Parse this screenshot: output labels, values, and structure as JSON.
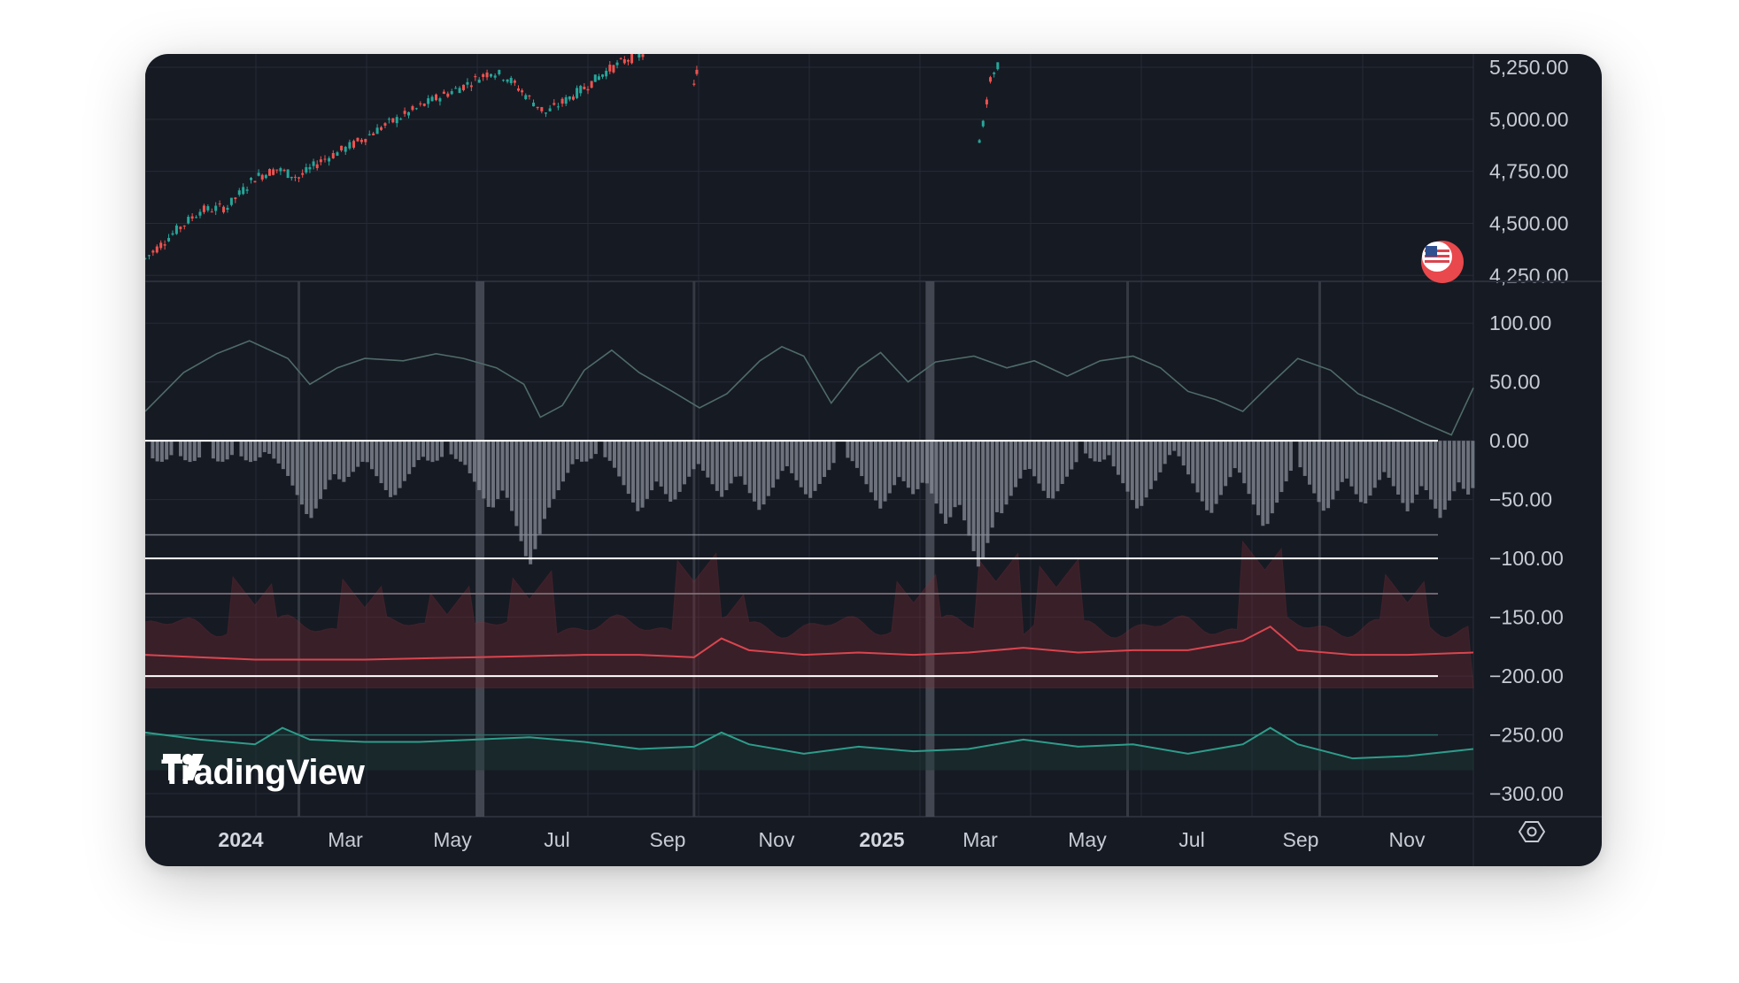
{
  "brand": {
    "name": "TradingView"
  },
  "icons": {
    "logo": "tradingview-logo",
    "settings": "gear-icon",
    "flag": "us-flag-icon"
  },
  "colors": {
    "background": "#161a23",
    "grid": "#262b36",
    "candle_up": "#26a69a",
    "candle_down": "#ef5350",
    "oscillator_line": "#4f6b68",
    "histogram": "#8a8f99",
    "red_line": "#d9454f",
    "red_area": "#7a2a33",
    "green_line": "#2e9c8a",
    "white_level": "#ffffff"
  },
  "chart_data": [
    {
      "type": "candlestick",
      "panel": "price",
      "y_ticks": [
        "5,250.00",
        "5,000.00",
        "4,750.00",
        "4,500.00",
        "4,250.00"
      ],
      "ylim": [
        4230,
        5280
      ],
      "x_ticks": [
        "2024",
        "Mar",
        "May",
        "Jul",
        "Sep",
        "Nov",
        "2025",
        "Mar",
        "May",
        "Jul",
        "Sep",
        "Nov"
      ],
      "xlim": [
        0,
        24.2
      ],
      "price_closes": [
        [
          0.0,
          4330
        ],
        [
          0.5,
          4450
        ],
        [
          1.0,
          4560
        ],
        [
          1.5,
          4580
        ],
        [
          2.0,
          4720
        ],
        [
          2.4,
          4760
        ],
        [
          2.8,
          4720
        ],
        [
          3.2,
          4800
        ],
        [
          3.8,
          4880
        ],
        [
          4.3,
          4960
        ],
        [
          4.8,
          5030
        ],
        [
          5.3,
          5100
        ],
        [
          5.8,
          5160
        ],
        [
          6.3,
          5230
        ],
        [
          6.6,
          5200
        ],
        [
          7.0,
          5100
        ],
        [
          7.3,
          5030
        ],
        [
          7.6,
          5080
        ],
        [
          8.0,
          5150
        ],
        [
          8.4,
          5230
        ],
        [
          8.8,
          5290
        ],
        [
          9.2,
          5320
        ]
      ],
      "price_segment_2": [
        [
          15.2,
          4880
        ],
        [
          15.4,
          5180
        ],
        [
          15.6,
          5300
        ]
      ],
      "price_segment_1b": [
        [
          10.0,
          5180
        ],
        [
          10.1,
          5280
        ]
      ]
    },
    {
      "type": "line",
      "panel": "oscillator",
      "name": "",
      "y_ticks": [
        "100.00",
        "50.00",
        "0.00",
        "−50.00",
        "−100.00",
        "−150.00",
        "−200.00",
        "−250.00",
        "−300.00"
      ],
      "ylim": [
        -312,
        128
      ],
      "xlim": [
        0,
        24.2
      ],
      "upper_line": [
        [
          0,
          25
        ],
        [
          0.7,
          58
        ],
        [
          1.3,
          74
        ],
        [
          1.9,
          85
        ],
        [
          2.6,
          70
        ],
        [
          3.0,
          48
        ],
        [
          3.5,
          62
        ],
        [
          4.0,
          70
        ],
        [
          4.7,
          68
        ],
        [
          5.3,
          74
        ],
        [
          5.8,
          70
        ],
        [
          6.4,
          62
        ],
        [
          6.9,
          48
        ],
        [
          7.2,
          20
        ],
        [
          7.6,
          30
        ],
        [
          8.0,
          60
        ],
        [
          8.5,
          77
        ],
        [
          9.0,
          58
        ],
        [
          9.6,
          42
        ],
        [
          10.1,
          28
        ],
        [
          10.6,
          40
        ],
        [
          11.2,
          68
        ],
        [
          11.6,
          80
        ],
        [
          12.0,
          72
        ],
        [
          12.5,
          32
        ],
        [
          13.0,
          62
        ],
        [
          13.4,
          75
        ],
        [
          13.9,
          50
        ],
        [
          14.4,
          67
        ],
        [
          15.1,
          72
        ],
        [
          15.7,
          62
        ],
        [
          16.2,
          68
        ],
        [
          16.8,
          55
        ],
        [
          17.4,
          68
        ],
        [
          18.0,
          72
        ],
        [
          18.5,
          62
        ],
        [
          19.0,
          42
        ],
        [
          19.5,
          35
        ],
        [
          20.0,
          25
        ],
        [
          20.5,
          48
        ],
        [
          21.0,
          70
        ],
        [
          21.6,
          60
        ],
        [
          22.1,
          40
        ],
        [
          22.7,
          28
        ],
        [
          23.3,
          15
        ],
        [
          23.8,
          5
        ],
        [
          24.2,
          45
        ]
      ],
      "lower_red": [
        [
          0,
          -182
        ],
        [
          1,
          -184
        ],
        [
          2,
          -186
        ],
        [
          3,
          -186
        ],
        [
          4,
          -186
        ],
        [
          5,
          -185
        ],
        [
          6,
          -184
        ],
        [
          7,
          -183
        ],
        [
          8,
          -182
        ],
        [
          9,
          -182
        ],
        [
          10,
          -184
        ],
        [
          10.5,
          -168
        ],
        [
          11.0,
          -178
        ],
        [
          12,
          -182
        ],
        [
          13,
          -180
        ],
        [
          14,
          -182
        ],
        [
          15,
          -180
        ],
        [
          16,
          -176
        ],
        [
          17,
          -180
        ],
        [
          18,
          -178
        ],
        [
          19,
          -178
        ],
        [
          20,
          -170
        ],
        [
          20.5,
          -158
        ],
        [
          21,
          -178
        ],
        [
          22,
          -182
        ],
        [
          23,
          -182
        ],
        [
          24.2,
          -180
        ]
      ],
      "lower_green": [
        [
          0,
          -248
        ],
        [
          1,
          -254
        ],
        [
          2,
          -258
        ],
        [
          2.5,
          -244
        ],
        [
          3,
          -254
        ],
        [
          4,
          -256
        ],
        [
          5,
          -256
        ],
        [
          6,
          -254
        ],
        [
          7,
          -252
        ],
        [
          8,
          -256
        ],
        [
          9,
          -262
        ],
        [
          10,
          -260
        ],
        [
          10.5,
          -248
        ],
        [
          11,
          -258
        ],
        [
          12,
          -266
        ],
        [
          13,
          -260
        ],
        [
          14,
          -264
        ],
        [
          15,
          -262
        ],
        [
          16,
          -254
        ],
        [
          17,
          -260
        ],
        [
          18,
          -258
        ],
        [
          19,
          -266
        ],
        [
          20,
          -258
        ],
        [
          20.5,
          -244
        ],
        [
          21,
          -258
        ],
        [
          22,
          -270
        ],
        [
          23,
          -268
        ],
        [
          24.2,
          -262
        ]
      ],
      "red_area_spikes": [
        [
          2.0,
          -140
        ],
        [
          4.0,
          -142
        ],
        [
          5.5,
          -148
        ],
        [
          7.0,
          -135
        ],
        [
          10.0,
          -120
        ],
        [
          10.5,
          -155
        ],
        [
          14.0,
          -138
        ],
        [
          15.5,
          -120
        ],
        [
          16.6,
          -125
        ],
        [
          20.4,
          -110
        ],
        [
          23.0,
          -138
        ]
      ],
      "histogram_depths": [
        [
          2.8,
          -40
        ],
        [
          3.0,
          -68
        ],
        [
          3.6,
          -36
        ],
        [
          4.5,
          -50
        ],
        [
          6.3,
          -60
        ],
        [
          6.8,
          -68
        ],
        [
          7.0,
          -108
        ],
        [
          7.3,
          -62
        ],
        [
          9.0,
          -62
        ],
        [
          9.6,
          -54
        ],
        [
          10.5,
          -48
        ],
        [
          11.2,
          -60
        ],
        [
          12.1,
          -50
        ],
        [
          13.4,
          -58
        ],
        [
          14.0,
          -46
        ],
        [
          14.6,
          -72
        ],
        [
          15.2,
          -110
        ],
        [
          15.6,
          -62
        ],
        [
          16.5,
          -52
        ],
        [
          18.1,
          -60
        ],
        [
          19.4,
          -64
        ],
        [
          20.4,
          -76
        ],
        [
          21.5,
          -62
        ],
        [
          22.2,
          -56
        ],
        [
          23.0,
          -60
        ],
        [
          23.6,
          -66
        ],
        [
          24.1,
          -46
        ]
      ],
      "horizontal_levels": [
        0,
        -100,
        -200
      ],
      "grey_levels": [
        -80,
        -130,
        -250
      ],
      "vertical_markers": [
        2.8,
        6.1,
        10.0,
        14.3,
        17.9,
        21.4
      ]
    }
  ]
}
